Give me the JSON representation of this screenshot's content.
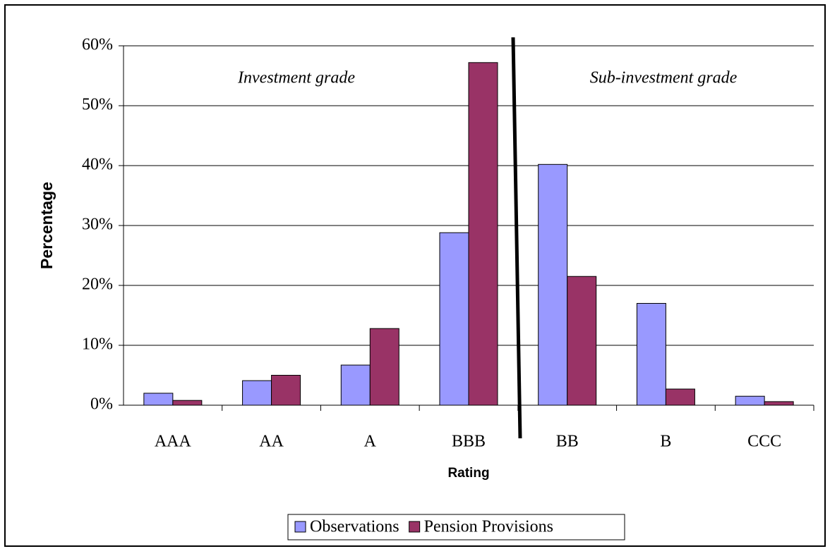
{
  "chart_data": {
    "type": "bar",
    "categories": [
      "AAA",
      "AA",
      "A",
      "BBB",
      "BB",
      "B",
      "CCC"
    ],
    "series": [
      {
        "name": "Observations",
        "color": "#9999ff",
        "values": [
          2.0,
          4.1,
          6.7,
          28.8,
          40.2,
          17.0,
          1.5
        ]
      },
      {
        "name": "Pension Provisions",
        "color": "#993366",
        "values": [
          0.8,
          5.0,
          12.8,
          57.2,
          21.5,
          2.7,
          0.6
        ]
      }
    ],
    "ylim": [
      0,
      60
    ],
    "yticks": [
      {
        "value": 0,
        "label": "0%"
      },
      {
        "value": 10,
        "label": "10%"
      },
      {
        "value": 20,
        "label": "20%"
      },
      {
        "value": 30,
        "label": "30%"
      },
      {
        "value": 40,
        "label": "40%"
      },
      {
        "value": 50,
        "label": "50%"
      },
      {
        "value": 60,
        "label": "60%"
      }
    ],
    "y_label": "Percentage",
    "x_label": "Rating",
    "annotations": [
      "Investment grade",
      "Sub-investment grade"
    ],
    "grid": true,
    "legend": "bottom"
  }
}
